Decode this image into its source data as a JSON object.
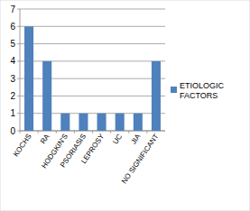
{
  "chart_data": {
    "type": "bar",
    "categories": [
      "KOCHS",
      "RA",
      "HODGKIN'S",
      "PSORIASIS",
      "LEPROSY",
      "UC",
      "JIA",
      "NO SIGNIFICANT"
    ],
    "series": [
      {
        "name": "ETIOLOGIC FACTORS",
        "color": "#4f81bd",
        "values": [
          6,
          4,
          1,
          1,
          1,
          1,
          1,
          4
        ]
      }
    ],
    "ylim": [
      0,
      7
    ],
    "yticks": [
      0,
      1,
      2,
      3,
      4,
      5,
      6,
      7
    ],
    "grid": true,
    "legend": "right"
  }
}
